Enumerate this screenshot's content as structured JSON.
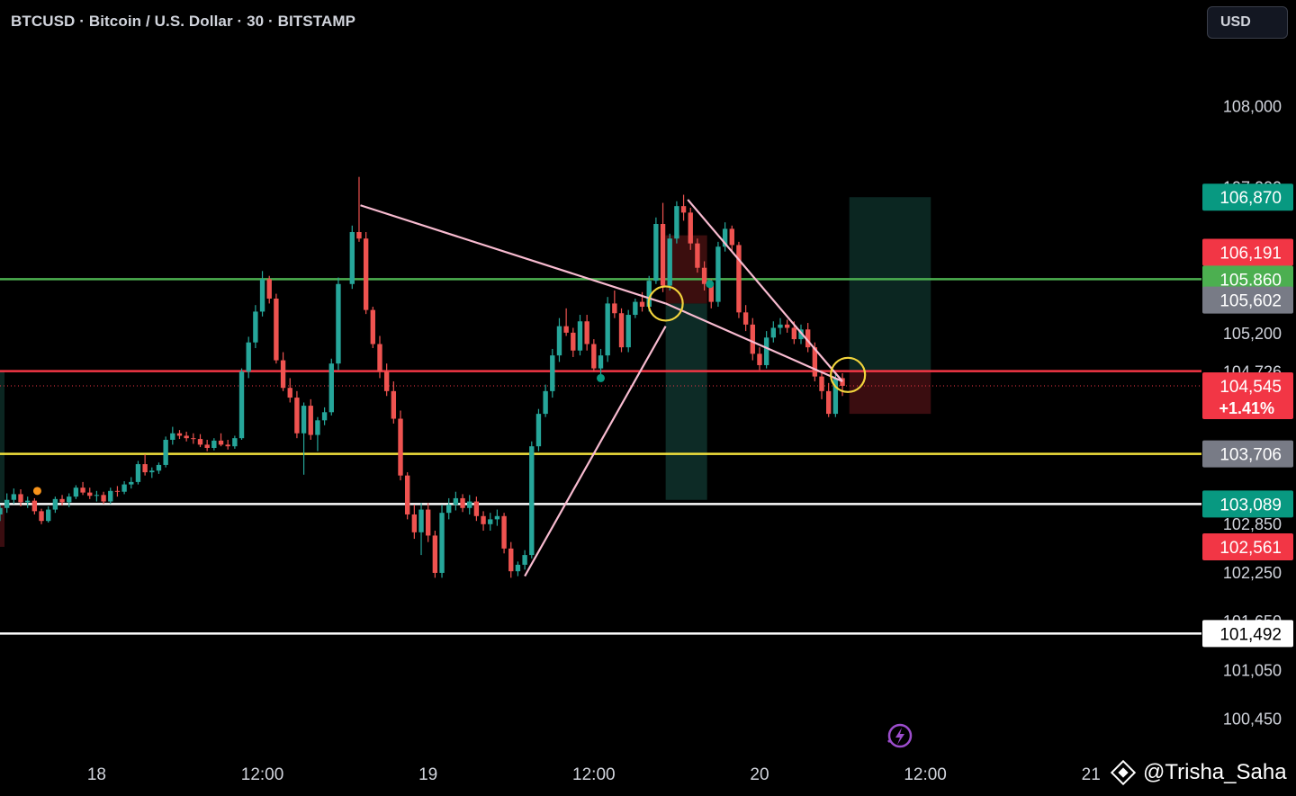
{
  "header": {
    "title": "BTCUSD · Bitcoin / U.S. Dollar · 30 · BITSTAMP",
    "currency_label": "USD"
  },
  "watermark": {
    "text": "@Trisha_Saha",
    "icon": "diamond-logo-icon"
  },
  "colors": {
    "background": "#000000",
    "up": "#26a69a",
    "down": "#ef5350",
    "trendline": "#f8bbd0",
    "highlight_circle": "#f2d43c",
    "level_yellow": "#f2e13c",
    "level_white": "#ffffff",
    "level_green": "#4caf50",
    "level_red": "#f23645"
  },
  "chart_data": {
    "type": "candlestick",
    "title": "BTCUSD · Bitcoin / U.S. Dollar · 30 · BITSTAMP",
    "timeframe": "30",
    "x_range": [
      -31,
      56
    ],
    "ylim": [
      100100,
      109300
    ],
    "y_ticks": [
      {
        "value": 108000,
        "label": "108,000"
      },
      {
        "value": 107000,
        "label": "107,000"
      },
      {
        "value": 105200,
        "label": "105,200"
      },
      {
        "value": 104726,
        "label": "104,726"
      },
      {
        "value": 102850,
        "label": "102,850"
      },
      {
        "value": 102250,
        "label": "102,250"
      },
      {
        "value": 101650,
        "label": "101,650"
      },
      {
        "value": 101050,
        "label": "101,050"
      },
      {
        "value": 100450,
        "label": "100,450"
      }
    ],
    "x_ticks": [
      {
        "t": -24,
        "label": "18"
      },
      {
        "t": -12,
        "label": "12:00"
      },
      {
        "t": 0,
        "label": "19"
      },
      {
        "t": 12,
        "label": "12:00"
      },
      {
        "t": 24,
        "label": "20"
      },
      {
        "t": 36,
        "label": "12:00"
      },
      {
        "t": 48,
        "label": "21"
      }
    ],
    "candles": [
      [
        -31.0,
        102960,
        103080,
        102880,
        103040
      ],
      [
        -30.5,
        103040,
        103220,
        102980,
        103140
      ],
      [
        -30.0,
        103140,
        103280,
        103090,
        103210
      ],
      [
        -29.5,
        103210,
        103270,
        103060,
        103110
      ],
      [
        -29.0,
        103110,
        103180,
        103040,
        103130
      ],
      [
        -28.5,
        103130,
        103160,
        102960,
        103000
      ],
      [
        -28.0,
        103000,
        103030,
        102840,
        102880
      ],
      [
        -27.5,
        102880,
        103060,
        102860,
        103020
      ],
      [
        -27.0,
        103020,
        103180,
        102980,
        103150
      ],
      [
        -26.5,
        103150,
        103200,
        103070,
        103110
      ],
      [
        -26.0,
        103110,
        103220,
        103050,
        103180
      ],
      [
        -25.5,
        103180,
        103320,
        103150,
        103290
      ],
      [
        -25.0,
        103290,
        103360,
        103200,
        103230
      ],
      [
        -24.5,
        103230,
        103290,
        103150,
        103190
      ],
      [
        -24.0,
        103190,
        103250,
        103120,
        103200
      ],
      [
        -23.5,
        103200,
        103240,
        103090,
        103120
      ],
      [
        -23.0,
        103120,
        103290,
        103090,
        103250
      ],
      [
        -22.5,
        103250,
        103310,
        103180,
        103240
      ],
      [
        -22.0,
        103240,
        103370,
        103210,
        103330
      ],
      [
        -21.5,
        103330,
        103420,
        103280,
        103360
      ],
      [
        -21.0,
        103360,
        103620,
        103330,
        103580
      ],
      [
        -20.5,
        103580,
        103700,
        103440,
        103480
      ],
      [
        -20.0,
        103480,
        103540,
        103410,
        103500
      ],
      [
        -19.5,
        103500,
        103600,
        103460,
        103570
      ],
      [
        -19.0,
        103570,
        103920,
        103540,
        103880
      ],
      [
        -18.5,
        103880,
        104040,
        103820,
        103960
      ],
      [
        -18.0,
        103960,
        104000,
        103890,
        103930
      ],
      [
        -17.5,
        103930,
        103980,
        103860,
        103900
      ],
      [
        -17.0,
        103900,
        103960,
        103830,
        103890
      ],
      [
        -16.5,
        103890,
        103950,
        103790,
        103820
      ],
      [
        -16.0,
        103820,
        103880,
        103740,
        103780
      ],
      [
        -15.5,
        103780,
        103900,
        103750,
        103870
      ],
      [
        -15.0,
        103870,
        103960,
        103800,
        103820
      ],
      [
        -14.5,
        103820,
        103880,
        103760,
        103800
      ],
      [
        -14.0,
        103800,
        103930,
        103770,
        103900
      ],
      [
        -13.5,
        103900,
        104760,
        103880,
        104720
      ],
      [
        -13.0,
        104720,
        105150,
        104640,
        105080
      ],
      [
        -12.5,
        105080,
        105540,
        105010,
        105460
      ],
      [
        -12.0,
        105460,
        105960,
        105400,
        105860
      ],
      [
        -11.5,
        105860,
        105900,
        105560,
        105620
      ],
      [
        -11.0,
        105620,
        105680,
        104820,
        104860
      ],
      [
        -10.5,
        104860,
        104960,
        104480,
        104520
      ],
      [
        -10.0,
        104520,
        104640,
        104340,
        104400
      ],
      [
        -9.5,
        104400,
        104480,
        103900,
        103960
      ],
      [
        -9.0,
        103960,
        104340,
        103450,
        104300
      ],
      [
        -8.5,
        104300,
        104380,
        103880,
        103940
      ],
      [
        -8.0,
        103940,
        104160,
        103740,
        104120
      ],
      [
        -7.5,
        104120,
        104280,
        104060,
        104220
      ],
      [
        -7.0,
        104220,
        104880,
        104180,
        104820
      ],
      [
        -6.5,
        104820,
        105880,
        104740,
        105800
      ],
      [
        -5.5,
        105800,
        106520,
        105740,
        106440
      ],
      [
        -5.0,
        106440,
        107120,
        106320,
        106360
      ],
      [
        -4.5,
        106360,
        106440,
        105430,
        105480
      ],
      [
        -4.0,
        105480,
        105520,
        105010,
        105060
      ],
      [
        -3.5,
        105060,
        105160,
        104640,
        104720
      ],
      [
        -3.0,
        104720,
        104820,
        104420,
        104480
      ],
      [
        -2.5,
        104480,
        104600,
        104080,
        104140
      ],
      [
        -2.0,
        104140,
        104240,
        103380,
        103440
      ],
      [
        -1.5,
        103440,
        103480,
        102900,
        102960
      ],
      [
        -1.0,
        102960,
        103080,
        102660,
        102740
      ],
      [
        -0.5,
        102740,
        103100,
        102460,
        103020
      ],
      [
        0.0,
        103020,
        103100,
        102620,
        102700
      ],
      [
        0.5,
        102700,
        102760,
        102180,
        102240
      ],
      [
        1.0,
        102240,
        103080,
        102180,
        102980
      ],
      [
        1.5,
        102980,
        103160,
        102900,
        103080
      ],
      [
        2.0,
        103080,
        103240,
        103010,
        103160
      ],
      [
        2.5,
        103160,
        103210,
        102990,
        103040
      ],
      [
        3.0,
        103040,
        103200,
        102960,
        103120
      ],
      [
        3.5,
        103120,
        103180,
        102880,
        102940
      ],
      [
        4.0,
        102940,
        103000,
        102760,
        102840
      ],
      [
        4.5,
        102840,
        102980,
        102760,
        102900
      ],
      [
        5.0,
        102900,
        103020,
        102820,
        102940
      ],
      [
        5.5,
        102940,
        102980,
        102480,
        102540
      ],
      [
        6.0,
        102540,
        102620,
        102180,
        102260
      ],
      [
        6.5,
        102260,
        102380,
        102200,
        102340
      ],
      [
        7.0,
        102340,
        102520,
        102280,
        102460
      ],
      [
        7.5,
        102460,
        103860,
        102420,
        103800
      ],
      [
        8.0,
        103800,
        104260,
        103740,
        104200
      ],
      [
        8.5,
        104200,
        104560,
        104160,
        104480
      ],
      [
        9.0,
        104480,
        105000,
        104400,
        104920
      ],
      [
        9.5,
        104920,
        105380,
        104840,
        105280
      ],
      [
        10.0,
        105280,
        105500,
        105160,
        105200
      ],
      [
        10.5,
        105200,
        105260,
        104900,
        104980
      ],
      [
        11.0,
        104980,
        105420,
        104920,
        105340
      ],
      [
        11.5,
        105340,
        105420,
        104980,
        105060
      ],
      [
        12.0,
        105060,
        105120,
        104720,
        104760
      ],
      [
        12.5,
        104760,
        105000,
        104620,
        104920
      ],
      [
        13.0,
        104920,
        105640,
        104840,
        105560
      ],
      [
        13.5,
        105560,
        105720,
        105380,
        105440
      ],
      [
        14.0,
        105440,
        105500,
        104960,
        105020
      ],
      [
        14.5,
        105020,
        105480,
        104960,
        105420
      ],
      [
        15.0,
        105420,
        105620,
        105380,
        105580
      ],
      [
        15.5,
        105580,
        105700,
        105460,
        105520
      ],
      [
        16.0,
        105520,
        105900,
        105460,
        105840
      ],
      [
        16.5,
        105840,
        106620,
        105800,
        106540
      ],
      [
        17.0,
        106540,
        106800,
        105700,
        105780
      ],
      [
        17.5,
        105780,
        106420,
        105720,
        106360
      ],
      [
        18.0,
        106360,
        106820,
        106300,
        106760
      ],
      [
        18.5,
        106760,
        106900,
        106580,
        106680
      ],
      [
        19.0,
        106680,
        106740,
        106220,
        106300
      ],
      [
        19.5,
        106300,
        106360,
        105940,
        106000
      ],
      [
        20.0,
        106000,
        106080,
        105720,
        105800
      ],
      [
        20.5,
        105800,
        105860,
        105500,
        105580
      ],
      [
        21.0,
        105580,
        106320,
        105520,
        106260
      ],
      [
        21.5,
        106260,
        106560,
        106200,
        106480
      ],
      [
        22.0,
        106480,
        106520,
        106200,
        106280
      ],
      [
        22.5,
        106280,
        106320,
        105380,
        105450
      ],
      [
        23.0,
        105450,
        105540,
        105220,
        105300
      ],
      [
        23.5,
        105300,
        105380,
        104860,
        104940
      ],
      [
        24.0,
        104940,
        105020,
        104740,
        104800
      ],
      [
        24.5,
        104800,
        105220,
        104760,
        105140
      ],
      [
        25.0,
        105140,
        105340,
        105080,
        105260
      ],
      [
        25.5,
        105260,
        105380,
        105180,
        105300
      ],
      [
        26.0,
        105300,
        105360,
        105200,
        105260
      ],
      [
        26.5,
        105260,
        105340,
        105060,
        105120
      ],
      [
        27.0,
        105120,
        105300,
        105060,
        105240
      ],
      [
        27.5,
        105240,
        105320,
        104960,
        105020
      ],
      [
        28.0,
        105020,
        105080,
        104600,
        104660
      ],
      [
        28.5,
        104660,
        104740,
        104380,
        104480
      ],
      [
        29.0,
        104480,
        104580,
        104160,
        104200
      ],
      [
        29.5,
        104200,
        104700,
        104160,
        104640
      ],
      [
        30.0,
        104640,
        104700,
        104420,
        104545
      ]
    ],
    "price_levels": [
      {
        "value": 105860,
        "label": "105.860",
        "color": "#4caf50"
      },
      {
        "value": 104726,
        "color": "#f23645"
      },
      {
        "value": 103706,
        "label": "103,706",
        "color": "#f2e13c"
      },
      {
        "value": 103089,
        "label": "103,089",
        "color": "#ffffff"
      },
      {
        "value": 101492,
        "label": "101,492",
        "color": "#ffffff"
      }
    ],
    "price_markers": [
      {
        "value": 106870,
        "label": "106,870",
        "bg": "#089981",
        "fg": "#ffffff"
      },
      {
        "value": 106191,
        "label": "106,191",
        "bg": "#f23645",
        "fg": "#ffffff"
      },
      {
        "value": 105860,
        "label": "105.860",
        "bg": "#4caf50",
        "fg": "#ffffff"
      },
      {
        "value": 105602,
        "label": "105,602",
        "bg": "#787b86",
        "fg": "#ffffff"
      },
      {
        "value": 104545,
        "label": "104,545",
        "sublabel": "+1.41%",
        "bg": "#f23645",
        "fg": "#ffffff"
      },
      {
        "value": 103706,
        "label": "103,706",
        "bg": "#787b86",
        "fg": "#ffffff"
      },
      {
        "value": 103089,
        "label": "103,089",
        "bg": "#089981",
        "fg": "#ffffff"
      },
      {
        "value": 102561,
        "label": "102,561",
        "bg": "#f23645",
        "fg": "#ffffff"
      },
      {
        "value": 101492,
        "label": "101,492",
        "bg": "#ffffff",
        "fg": "#000000"
      }
    ],
    "trendlines": [
      {
        "t1": -4.9,
        "p1": 106770,
        "t2": 17.2,
        "p2": 105560
      },
      {
        "t1": 17.2,
        "p1": 105560,
        "t2": 30.0,
        "p2": 104600
      },
      {
        "t1": 7.0,
        "p1": 102200,
        "t2": 17.2,
        "p2": 105280
      },
      {
        "t1": 18.8,
        "p1": 106840,
        "t2": 30.0,
        "p2": 104600
      }
    ],
    "circles": [
      {
        "t": 17.2,
        "p": 105560
      },
      {
        "t": 30.4,
        "p": 104680
      }
    ],
    "position_zones": [
      {
        "t1": 17.2,
        "t2": 20.2,
        "p1": 105560,
        "p2": 103140,
        "color": "#0d2b26"
      },
      {
        "t1": 17.2,
        "t2": 20.2,
        "p1": 106400,
        "p2": 105560,
        "color": "#3b0e0e"
      },
      {
        "t1": 30.5,
        "t2": 36.4,
        "p1": 106870,
        "p2": 104726,
        "color": "#0b2621"
      },
      {
        "t1": 30.5,
        "t2": 36.4,
        "p1": 104726,
        "p2": 104200,
        "color": "#3a0d10"
      }
    ],
    "event_markers": [
      {
        "t": -28.3,
        "p": 103250,
        "color": "#f7931a"
      },
      {
        "t": 12.5,
        "p": 104640,
        "color": "#089981"
      },
      {
        "t": 20.4,
        "p": 105800,
        "color": "#089981"
      }
    ]
  }
}
